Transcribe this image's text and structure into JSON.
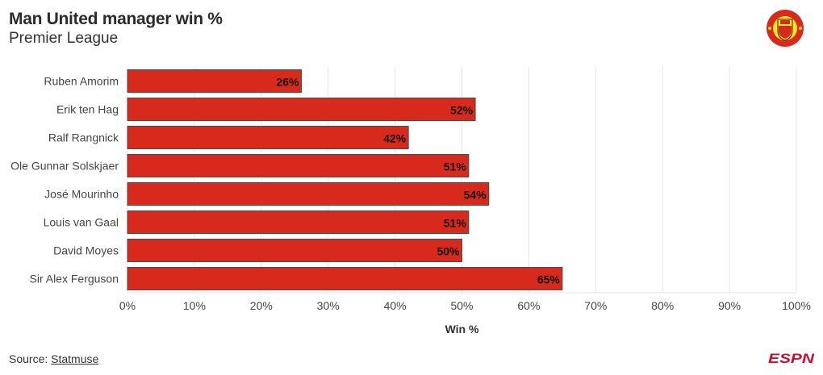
{
  "title": "Man United manager win %",
  "subtitle": "Premier League",
  "source_label": "Source:",
  "source_link": "Statmuse",
  "logos": {
    "club": "MANCHESTER UNITED",
    "publisher": "ESPN"
  },
  "colors": {
    "bar": "#d8291d",
    "bar_border": "#4a4a4a",
    "grid": "#e6e6e6"
  },
  "chart_data": {
    "type": "bar",
    "orientation": "horizontal",
    "title": "Man United manager win %",
    "subtitle": "Premier League",
    "categories": [
      "Ruben Amorim",
      "Erik ten Hag",
      "Ralf Rangnick",
      "Ole Gunnar Solskjaer",
      "José Mourinho",
      "Louis van Gaal",
      "David Moyes",
      "Sir Alex Ferguson"
    ],
    "values": [
      26,
      52,
      42,
      51,
      54,
      51,
      50,
      65
    ],
    "data_labels": [
      "26%",
      "52%",
      "42%",
      "51%",
      "54%",
      "51%",
      "50%",
      "65%"
    ],
    "xlabel": "Win %",
    "ylabel": "",
    "xlim": [
      0,
      100
    ],
    "xticks": [
      0,
      10,
      20,
      30,
      40,
      50,
      60,
      70,
      80,
      90,
      100
    ],
    "xtick_labels": [
      "0%",
      "10%",
      "20%",
      "30%",
      "40%",
      "50%",
      "60%",
      "70%",
      "80%",
      "90%",
      "100%"
    ],
    "grid": "vertical"
  }
}
